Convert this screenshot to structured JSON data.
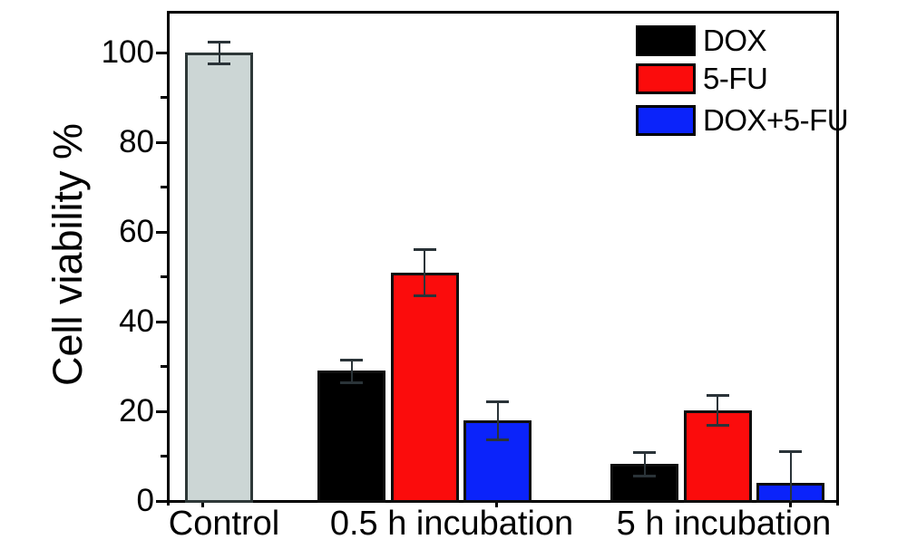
{
  "figure": {
    "background": "#ffffff",
    "axis_color": "#000000",
    "error_bar_color": "#2a3338"
  },
  "legend": {
    "position": "top-right",
    "items": [
      {
        "label": "DOX",
        "color": "#000000",
        "icon": "black-swatch"
      },
      {
        "label": "5-FU",
        "color": "#fb0c0c",
        "icon": "red-swatch"
      },
      {
        "label": "DOX+5-FU",
        "color": "#0b23fa",
        "icon": "blue-swatch"
      }
    ]
  },
  "chart_data": {
    "type": "bar",
    "title": "",
    "xlabel": "",
    "ylabel": "Cell viability %",
    "ylim": [
      0,
      109
    ],
    "yticks": [
      0,
      20,
      40,
      60,
      80,
      100
    ],
    "yticks_minor": [
      10,
      30,
      50,
      70,
      90
    ],
    "grid": false,
    "error_bars": true,
    "legend_position": "top-right",
    "categories": [
      "Control",
      "0.5 h incubation",
      "5 h incubation"
    ],
    "groups": [
      {
        "label": "Control",
        "bars": [
          {
            "series": "Control",
            "value": 100,
            "error": 2.5,
            "color": "#ccd6d5",
            "border": "#2e3838"
          }
        ]
      },
      {
        "label": "0.5 h incubation",
        "bars": [
          {
            "series": "DOX",
            "value": 29,
            "error": 2.5,
            "color": "#000000",
            "border": "#0d0d0d"
          },
          {
            "series": "5-FU",
            "value": 51,
            "error": 5.2,
            "color": "#fb0c0c",
            "border": "#0d0d0d"
          },
          {
            "series": "DOX+5-FU",
            "value": 18,
            "error": 4.2,
            "color": "#0b23fa",
            "border": "#0d0d0d"
          }
        ]
      },
      {
        "label": "5 h incubation",
        "bars": [
          {
            "series": "DOX",
            "value": 8.3,
            "error": 2.7,
            "color": "#000000",
            "border": "#0d0d0d"
          },
          {
            "series": "5-FU",
            "value": 20.3,
            "error": 3.4,
            "color": "#fb0c0c",
            "border": "#0d0d0d"
          },
          {
            "series": "DOX+5-FU",
            "value": 4,
            "error": 7.2,
            "color": "#0b23fa",
            "border": "#0d0d0d"
          }
        ]
      }
    ]
  }
}
